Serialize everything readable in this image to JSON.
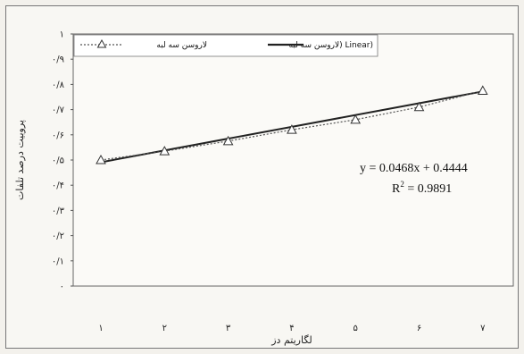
{
  "chart_data": {
    "type": "line",
    "x": [
      1,
      2,
      3,
      4,
      5,
      6,
      7
    ],
    "xtick_labels": [
      "۱",
      "۲",
      "۳",
      "۴",
      "۵",
      "۶",
      "۷"
    ],
    "ylim": [
      0,
      1
    ],
    "yticks": [
      0,
      0.1,
      0.2,
      0.3,
      0.4,
      0.5,
      0.6,
      0.7,
      0.8,
      0.9,
      1
    ],
    "ytick_labels": [
      "۰",
      "۰/۱",
      "۰/۲",
      "۰/۳",
      "۰/۴",
      "۰/۵",
      "۰/۶",
      "۰/۷",
      "۰/۸",
      "۰/۹",
      "۱"
    ],
    "xlabel": "لگاریتم دز",
    "ylabel": "پروبیت درصد تلفات",
    "grid": false,
    "legend_placement": "top",
    "series": [
      {
        "name": "لاروسن سه لبه",
        "style": "dotted-triangle",
        "color": "#555555",
        "values": [
          0.5,
          0.535,
          0.575,
          0.62,
          0.66,
          0.71,
          0.775
        ]
      },
      {
        "name": "لاروسن سه لبه) Linear)",
        "style": "solid",
        "color": "#222222",
        "slope": 0.0468,
        "intercept": 0.4444
      }
    ],
    "annotations": {
      "equation": "y = 0.0468x + 0.4444",
      "r_squared_prefix": "R",
      "r_squared_sup": "2",
      "r_squared_value": " = 0.9891"
    }
  }
}
